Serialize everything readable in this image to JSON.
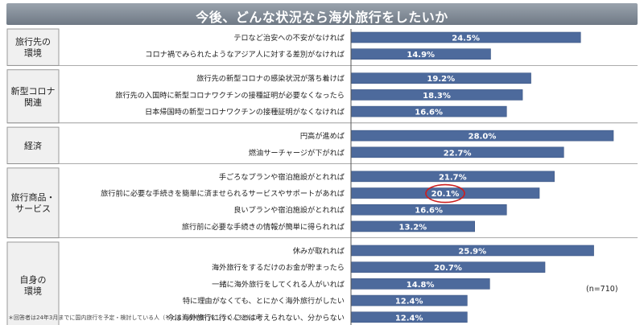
{
  "title": "今後、どんな状況なら海外旅行をしたいか",
  "n_label": "(n=710)",
  "footnote": "＊回答者は24年3月までに国内旅行を予定・検討している人（もともと海外旅行をしない人を除く）",
  "colors": {
    "bar": "#4d6a9c",
    "bar_edge": "#3c5684",
    "group_box": "#f0f0f0",
    "highlight_circle": "#cc1e1e"
  },
  "chart_data": {
    "type": "bar",
    "orientation": "horizontal",
    "title": "今後、どんな状況なら海外旅行をしたいか",
    "value_unit": "%",
    "xlim": [
      0,
      30
    ],
    "groups": [
      {
        "name": "旅行先の\n環境",
        "items": [
          {
            "label": "テロなど治安への不安がなければ",
            "value": 24.5
          },
          {
            "label": "コロナ禍でみられたようなアジア人に対する差別がなければ",
            "value": 14.9
          }
        ]
      },
      {
        "name": "新型コロナ\n関連",
        "items": [
          {
            "label": "旅行先の新型コロナの感染状況が落ち着けば",
            "value": 19.2
          },
          {
            "label": "旅行先の入国時に新型コロナワクチンの接種証明が必要なくなったら",
            "value": 18.3
          },
          {
            "label": "日本帰国時の新型コロナワクチンの接種証明がなくなければ",
            "value": 16.6
          }
        ]
      },
      {
        "name": "経済",
        "items": [
          {
            "label": "円高が進めば",
            "value": 28.0
          },
          {
            "label": "燃油サーチャージが下がれば",
            "value": 22.7
          }
        ]
      },
      {
        "name": "旅行商品・\nサービス",
        "items": [
          {
            "label": "手ごろなプランや宿泊施設がとれれば",
            "value": 21.7
          },
          {
            "label": "旅行前に必要な手続きを簡単に済ませられるサービスやサポートがあれば",
            "value": 20.1,
            "highlight": true
          },
          {
            "label": "良いプランや宿泊施設がとれれば",
            "value": 16.6
          },
          {
            "label": "旅行前に必要な手続きの情報が簡単に得られれば",
            "value": 13.2
          }
        ]
      },
      {
        "name": "自身の\n環境",
        "items": [
          {
            "label": "休みが取れれば",
            "value": 25.9
          },
          {
            "label": "海外旅行をするだけのお金が貯まったら",
            "value": 20.7
          },
          {
            "label": "一緒に海外旅行をしてくれる人がいれば",
            "value": 14.8
          },
          {
            "label": "特に理由がなくても、とにかく海外旅行がしたい",
            "value": 12.4
          },
          {
            "label": "今は海外旅行に行くことは考えられない、分からない",
            "value": 12.4
          }
        ]
      }
    ]
  }
}
